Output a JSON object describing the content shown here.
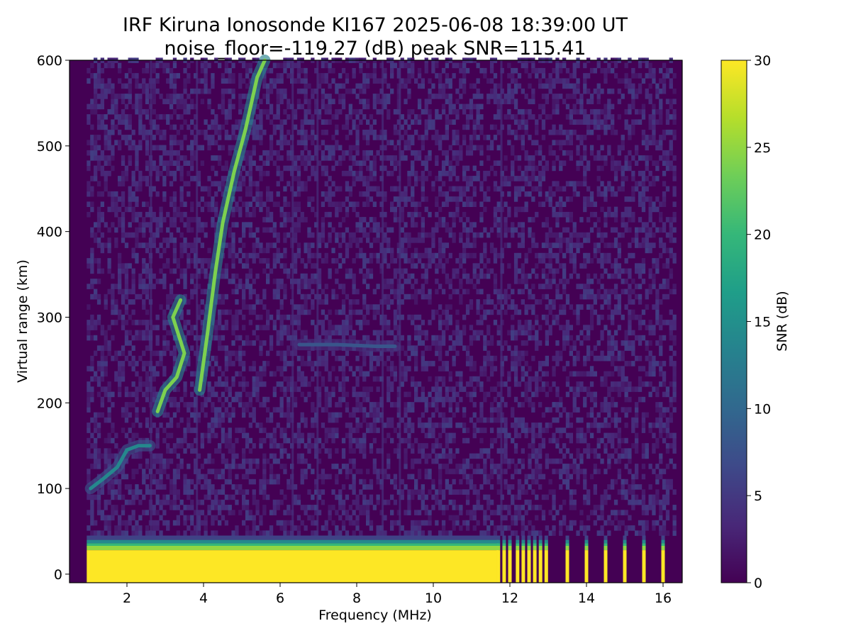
{
  "chart_data": {
    "type": "heatmap",
    "title": "IRF Kiruna Ionosonde KI167 2025-06-08 18:39:00  UT",
    "subtitle": "noise_floor=-119.27 (dB) peak SNR=115.41",
    "xlabel": "Frequency (MHz)",
    "ylabel": "Virtual range (km)",
    "colorbar_label": "SNR (dB)",
    "xlim": [
      0.5,
      16.5
    ],
    "ylim": [
      -10,
      600
    ],
    "clim": [
      0,
      30
    ],
    "xticks": [
      2,
      4,
      6,
      8,
      10,
      12,
      14,
      16
    ],
    "yticks": [
      0,
      100,
      200,
      300,
      400,
      500,
      600
    ],
    "colorbar_ticks": [
      0,
      5,
      10,
      15,
      20,
      25,
      30
    ],
    "colormap": [
      "#440154",
      "#482878",
      "#3e4989",
      "#31688e",
      "#26828e",
      "#1f9e89",
      "#35b779",
      "#6ece58",
      "#b5de2b",
      "#fde725"
    ],
    "data_extent_x": [
      0.95,
      16.3
    ],
    "ground_band": {
      "continuous_until_mhz": 11.7,
      "height_km": [
        -10,
        45
      ],
      "saturated_top_km": 28
    },
    "discrete_channels_mhz": [
      11.7,
      11.85,
      12.0,
      12.2,
      12.35,
      12.5,
      12.65,
      12.8,
      12.95,
      13.5,
      14.0,
      14.5,
      15.0,
      15.5,
      16.0
    ],
    "interference_lines_mhz": [
      2.6,
      3.8,
      6.3,
      6.95,
      8.65,
      9.1,
      11.75
    ],
    "traces": [
      {
        "layer": "E-region trace",
        "points": [
          [
            1.05,
            100
          ],
          [
            1.4,
            112
          ],
          [
            1.75,
            125
          ],
          [
            2.0,
            145
          ],
          [
            2.3,
            150
          ],
          [
            2.6,
            150
          ]
        ],
        "snr": 14
      },
      {
        "layer": "F1/F2 O-mode trace",
        "points": [
          [
            2.8,
            190
          ],
          [
            3.0,
            215
          ],
          [
            3.3,
            230
          ],
          [
            3.5,
            258
          ],
          [
            3.2,
            300
          ],
          [
            3.4,
            320
          ]
        ],
        "snr": 24
      },
      {
        "layer": "F2 X-mode trace",
        "points": [
          [
            3.9,
            215
          ],
          [
            4.1,
            280
          ],
          [
            4.3,
            350
          ],
          [
            4.5,
            410
          ],
          [
            4.8,
            470
          ],
          [
            5.1,
            520
          ],
          [
            5.4,
            580
          ],
          [
            5.6,
            600
          ]
        ],
        "snr": 24
      },
      {
        "layer": "oblique echo",
        "points": [
          [
            6.5,
            268
          ],
          [
            7.5,
            268
          ],
          [
            8.5,
            266
          ],
          [
            9.0,
            266
          ]
        ],
        "snr": 8
      }
    ]
  }
}
